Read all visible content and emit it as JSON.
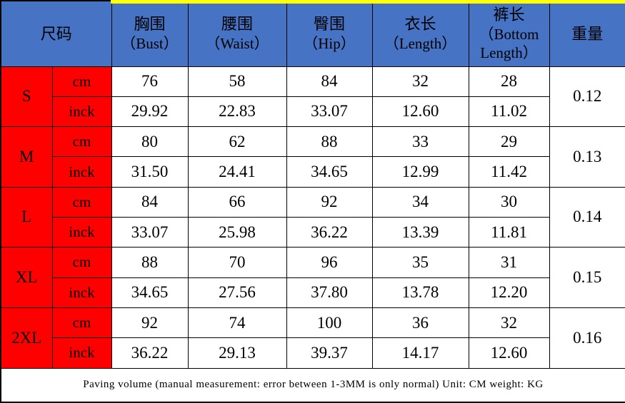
{
  "colors": {
    "header_blue": "#4673C3",
    "size_red": "#FF0000",
    "highlight_yellow": "#FFFF00",
    "border_black": "#000000",
    "cell_white": "#FFFFFF"
  },
  "table": {
    "size_header": "尺码",
    "columns": [
      {
        "cn": "胸围",
        "en": "（Bust）"
      },
      {
        "cn": "腰围",
        "en": "（Waist）"
      },
      {
        "cn": "臀围",
        "en": "（Hip）"
      },
      {
        "cn": "衣长",
        "en": "（Length）"
      },
      {
        "cn": "裤长",
        "en": "（Bottom Length）"
      },
      {
        "cn": "重量",
        "en": ""
      }
    ],
    "unit_labels": {
      "cm": "cm",
      "inch": "inck"
    },
    "rows": [
      {
        "size": "S",
        "cm": [
          "76",
          "58",
          "84",
          "32",
          "28"
        ],
        "inch": [
          "29.92",
          "22.83",
          "33.07",
          "12.60",
          "11.02"
        ],
        "weight": "0.12"
      },
      {
        "size": "M",
        "cm": [
          "80",
          "62",
          "88",
          "33",
          "29"
        ],
        "inch": [
          "31.50",
          "24.41",
          "34.65",
          "12.99",
          "11.42"
        ],
        "weight": "0.13"
      },
      {
        "size": "L",
        "cm": [
          "84",
          "66",
          "92",
          "34",
          "30"
        ],
        "inch": [
          "33.07",
          "25.98",
          "36.22",
          "13.39",
          "11.81"
        ],
        "weight": "0.14"
      },
      {
        "size": "XL",
        "cm": [
          "88",
          "70",
          "96",
          "35",
          "31"
        ],
        "inch": [
          "34.65",
          "27.56",
          "37.80",
          "13.78",
          "12.20"
        ],
        "weight": "0.15"
      },
      {
        "size": "2XL",
        "cm": [
          "92",
          "74",
          "100",
          "36",
          "32"
        ],
        "inch": [
          "36.22",
          "29.13",
          "39.37",
          "14.17",
          "12.60"
        ],
        "weight": "0.16"
      }
    ],
    "footer_note": "Paving volume (manual measurement: error between 1-3MM is only normal) Unit: CM weight: KG"
  }
}
